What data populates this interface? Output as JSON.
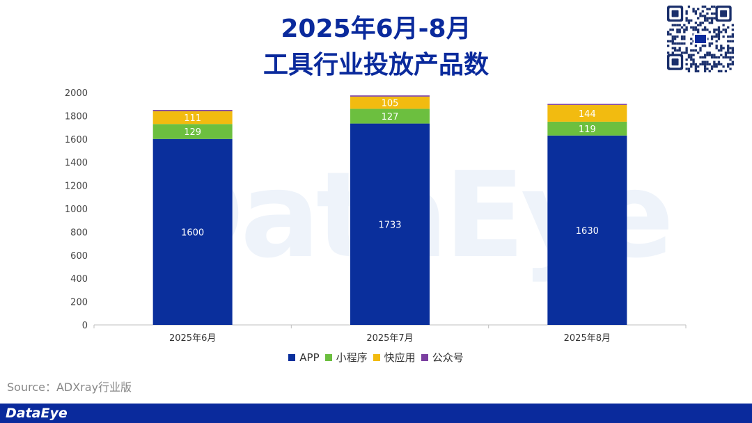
{
  "title_line1": "2025年6月-8月",
  "title_line2": "工具行业投放产品数",
  "watermark": "DataEye",
  "source": "Source：ADXray行业版",
  "footer_brand": "DataEye",
  "colors": {
    "title": "#0a2a9c",
    "footer": "#0a2a9c"
  },
  "chart_data": {
    "type": "bar",
    "stacked": true,
    "categories": [
      "2025年6月",
      "2025年7月",
      "2025年8月"
    ],
    "series": [
      {
        "name": "APP",
        "values": [
          1600,
          1733,
          1630
        ],
        "color": "#0a2f9c",
        "label_color": "#ffffff"
      },
      {
        "name": "小程序",
        "values": [
          129,
          127,
          119
        ],
        "color": "#6cbf3f",
        "label_color": "#ffffff"
      },
      {
        "name": "快应用",
        "values": [
          111,
          105,
          144
        ],
        "color": "#f2bb10",
        "label_color": "#ffffff"
      },
      {
        "name": "公众号",
        "values": [
          10,
          10,
          10
        ],
        "color": "#7b3fa0",
        "label_color": "#ffffff",
        "show_labels": false
      }
    ],
    "ylim": [
      0,
      2000
    ],
    "yticks": [
      0,
      200,
      400,
      600,
      800,
      1000,
      1200,
      1400,
      1600,
      1800,
      2000
    ],
    "grid": false,
    "legend": "bottom"
  }
}
